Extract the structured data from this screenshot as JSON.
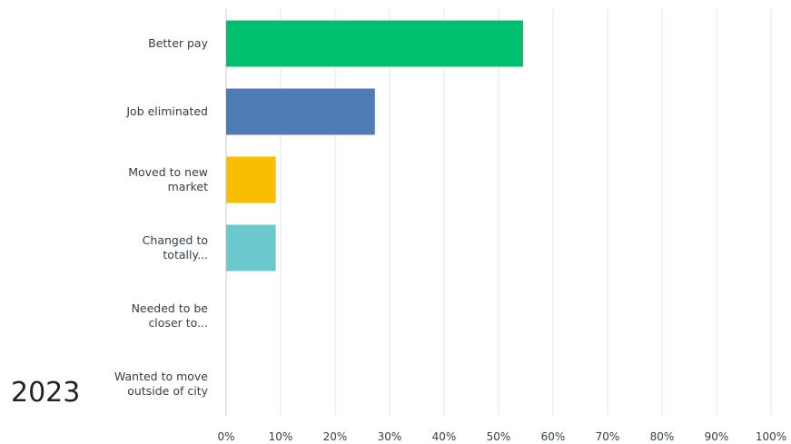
{
  "year_label": "2023",
  "chart_data": {
    "type": "bar",
    "orientation": "horizontal",
    "categories": [
      [
        "Better pay"
      ],
      [
        "Job eliminated"
      ],
      [
        "Moved to new",
        "market"
      ],
      [
        "Changed to",
        "totally..."
      ],
      [
        "Needed to be",
        "closer to..."
      ],
      [
        "Wanted to move",
        "outside of city"
      ]
    ],
    "values": [
      54.5,
      27.3,
      9.1,
      9.1,
      0,
      0
    ],
    "colors": [
      "#00bf6f",
      "#507cb6",
      "#f9be00",
      "#6bc8cd",
      "#b7b7b7",
      "#ff8b4f"
    ],
    "xlim": [
      0,
      100
    ],
    "x_ticks": [
      "0%",
      "10%",
      "20%",
      "30%",
      "40%",
      "50%",
      "60%",
      "70%",
      "80%",
      "90%",
      "100%"
    ],
    "grid": true
  }
}
